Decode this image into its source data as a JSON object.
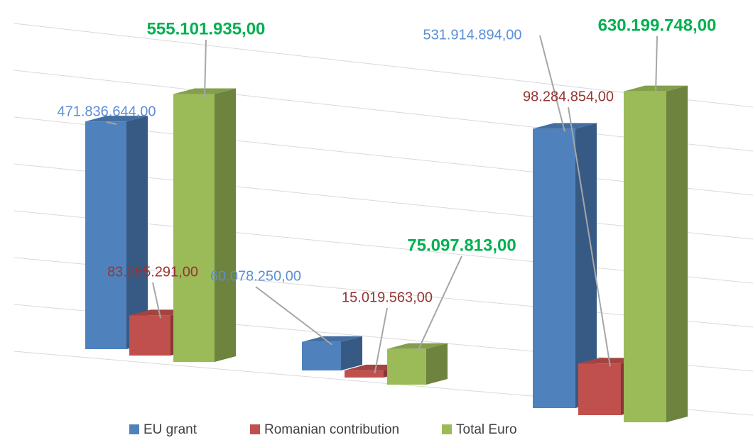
{
  "chart_data": {
    "type": "bar3d",
    "categories": [
      null,
      null,
      null
    ],
    "series": [
      {
        "name": "EU grant",
        "color": "#4f81bd",
        "values": [
          471836644,
          60078250,
          531914894
        ],
        "value_labels": [
          "471.836.644,00",
          "60.078.250,00",
          "531.914.894,00"
        ],
        "label_color": "#5b8fd6"
      },
      {
        "name": "Romanian contribution",
        "color": "#c0504d",
        "values": [
          83265291,
          15019563,
          98284854
        ],
        "value_labels": [
          "83.265.291,00",
          "15.019.563,00",
          "98.284.854,00"
        ],
        "label_color": "#943634"
      },
      {
        "name": "Total Euro",
        "color": "#9bbb59",
        "values": [
          555101935,
          75097813,
          630199748
        ],
        "value_labels": [
          "555.101.935,00",
          "75.097.813,00",
          "630.199.748,00"
        ],
        "label_color": "#00b050"
      }
    ],
    "ylim": [
      0,
      700000000
    ],
    "yticks": [
      0,
      100000000,
      200000000,
      300000000,
      400000000,
      500000000,
      600000000,
      700000000
    ],
    "grid": true
  }
}
